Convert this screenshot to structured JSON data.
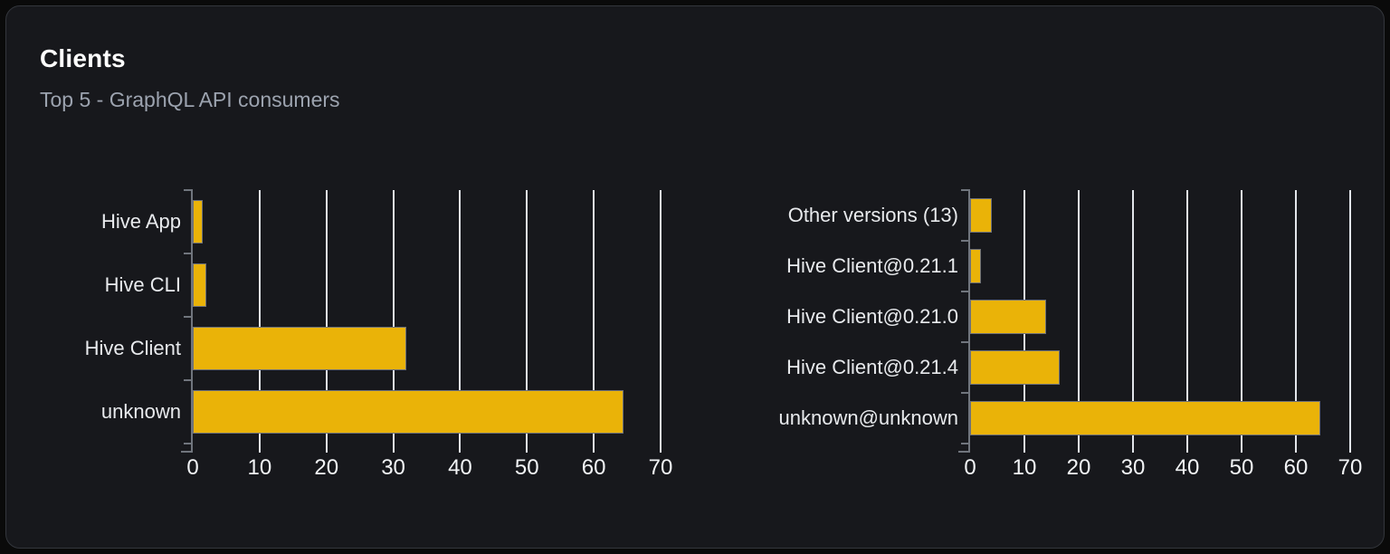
{
  "header": {
    "title": "Clients",
    "subtitle": "Top 5 - GraphQL API consumers"
  },
  "colors": {
    "bar": "#eab308",
    "bar_border": "#6e7179",
    "card_background": "#17181c",
    "page_background": "#0a0a0a",
    "grid": "#e2e5ea",
    "axis": "#70757d",
    "title": "#ffffff",
    "subtitle": "#9ca3af",
    "category_label": "#e8eaed",
    "tick_label": "#f2f4f6"
  },
  "chart_data": [
    {
      "type": "bar",
      "orientation": "horizontal",
      "title": "",
      "categories": [
        "Hive App",
        "Hive CLI",
        "Hive Client",
        "unknown"
      ],
      "values": [
        1.5,
        2,
        32,
        64.5
      ],
      "xlim": [
        0,
        70
      ],
      "xticks": [
        0,
        10,
        20,
        30,
        40,
        50,
        60,
        70
      ],
      "grid": true,
      "legend": false
    },
    {
      "type": "bar",
      "orientation": "horizontal",
      "title": "",
      "categories": [
        "Other versions (13)",
        "Hive Client@0.21.1",
        "Hive Client@0.21.0",
        "Hive Client@0.21.4",
        "unknown@unknown"
      ],
      "values": [
        4,
        2,
        14,
        16.5,
        64.5
      ],
      "xlim": [
        0,
        70
      ],
      "xticks": [
        0,
        10,
        20,
        30,
        40,
        50,
        60,
        70
      ],
      "grid": true,
      "legend": false
    }
  ]
}
